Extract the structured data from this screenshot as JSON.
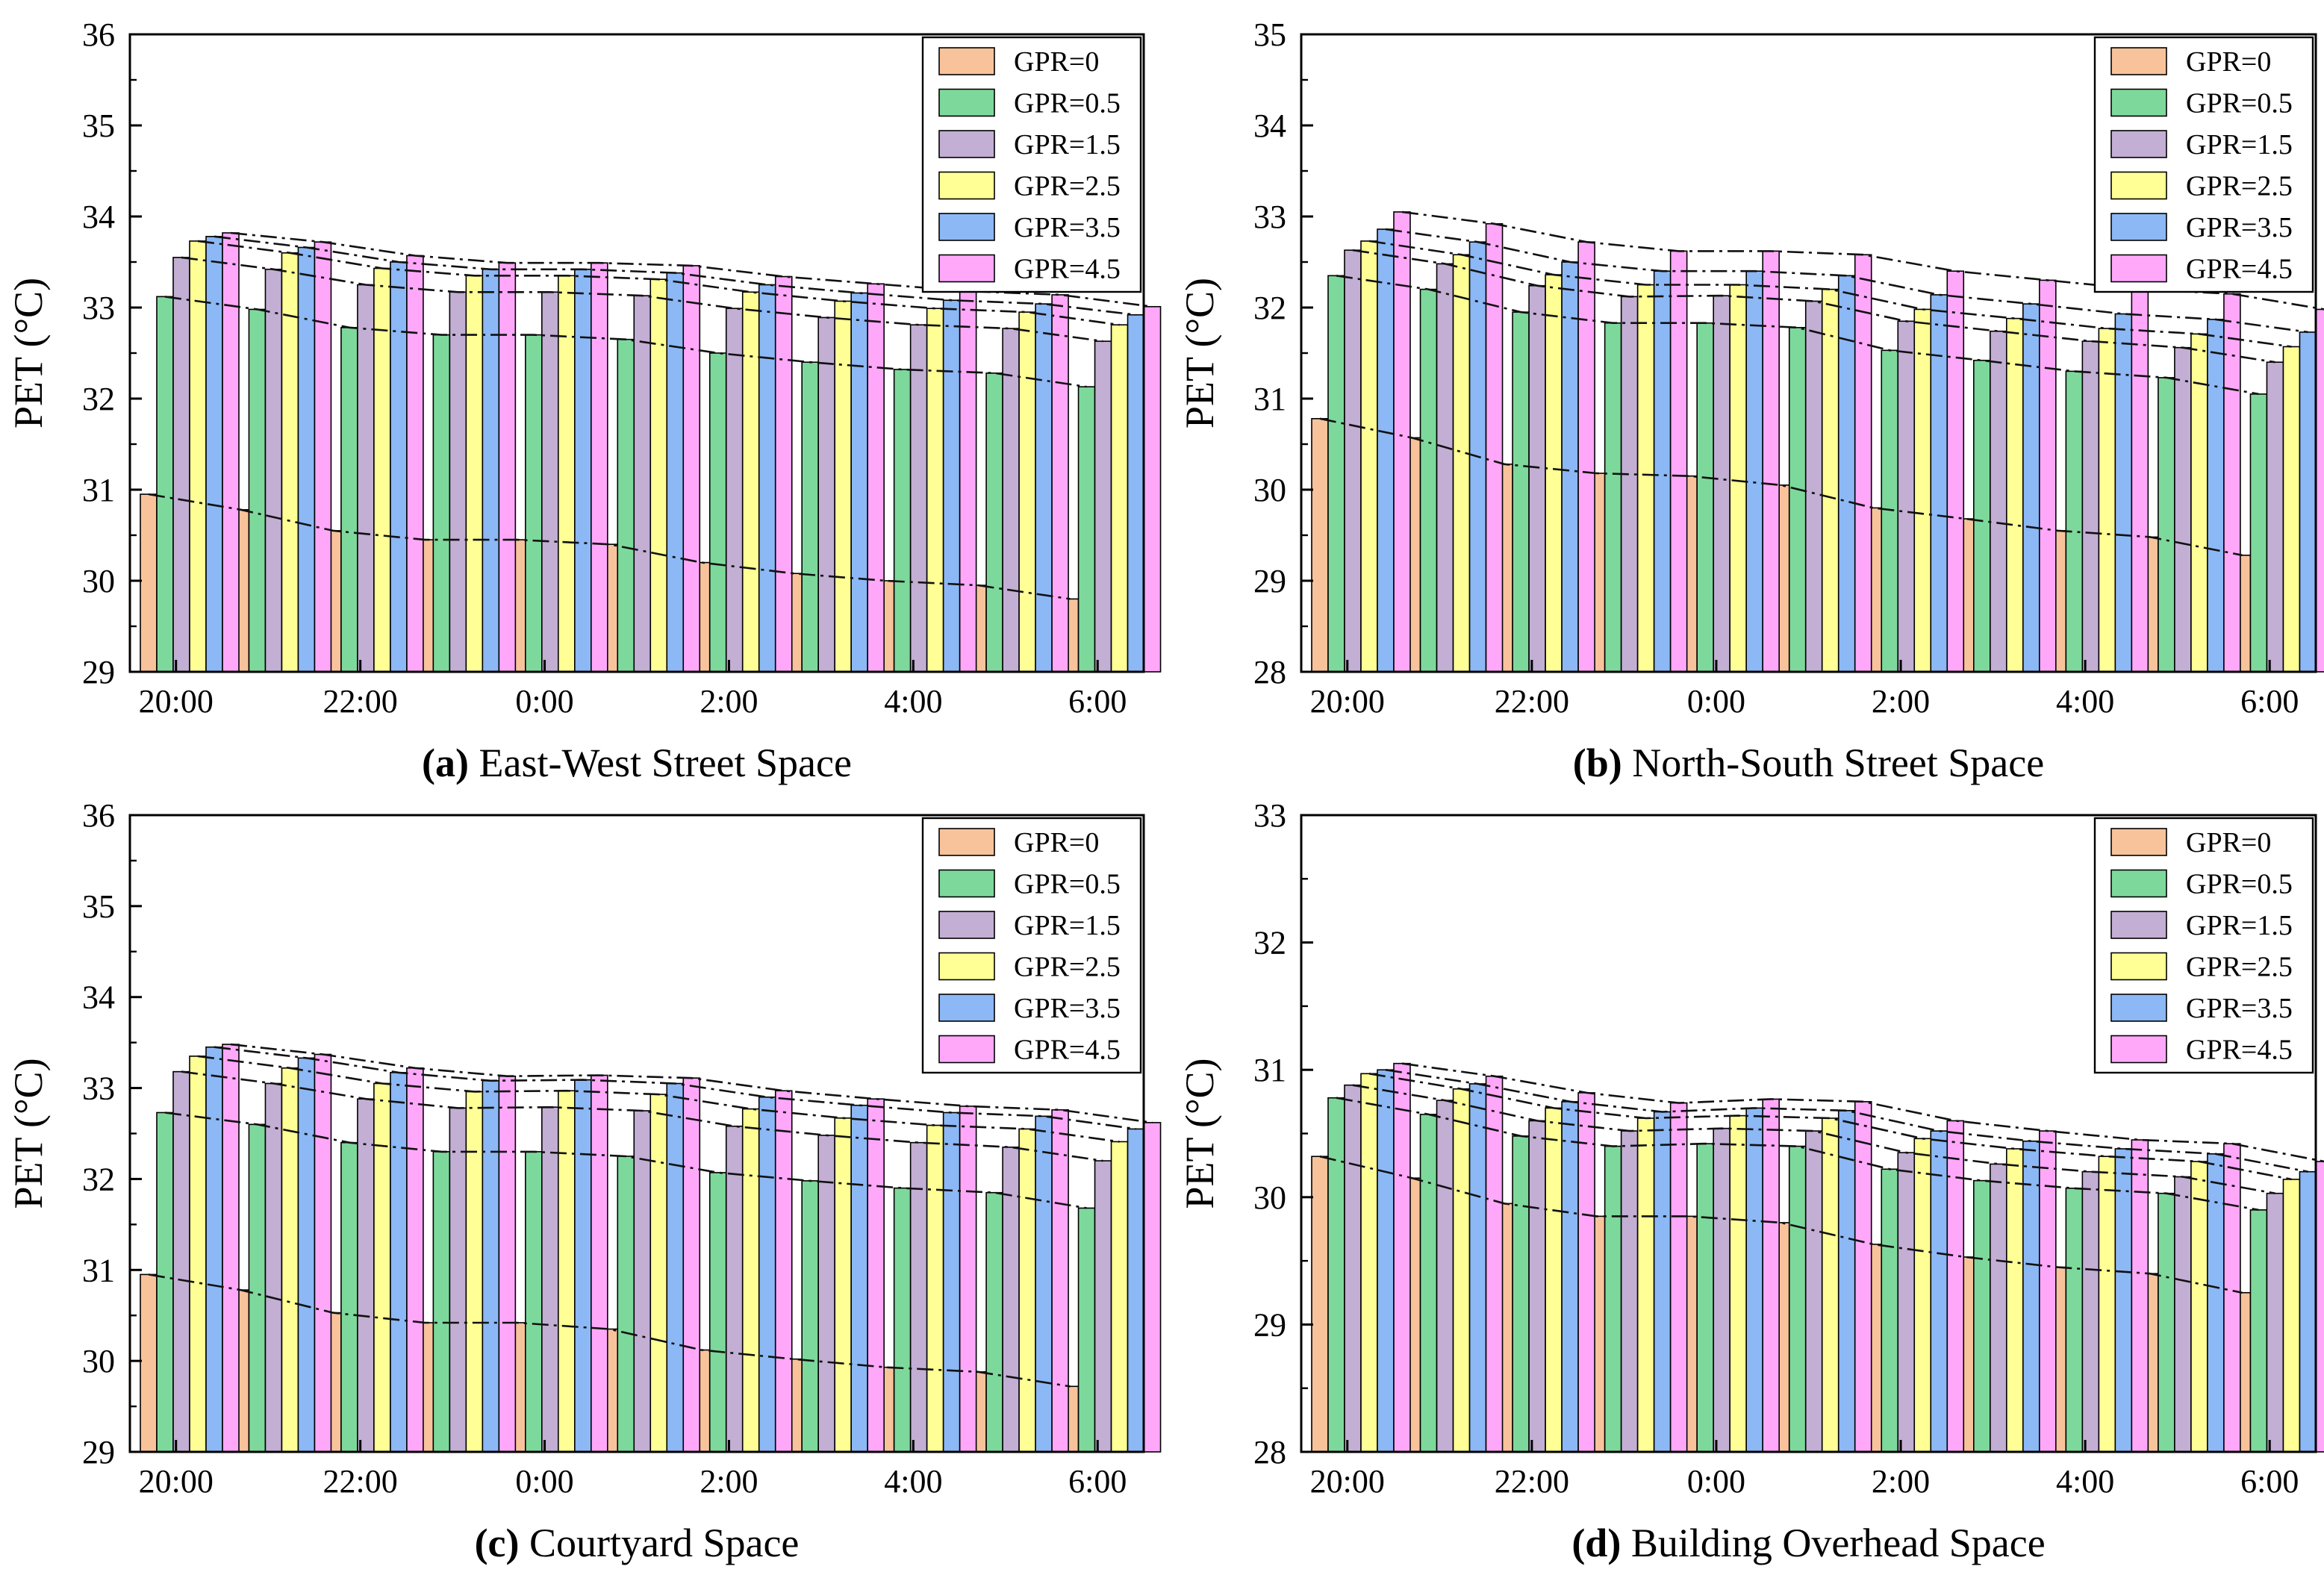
{
  "figure": {
    "legend_labels": [
      "GPR=0",
      "GPR=0.5",
      "GPR=1.5",
      "GPR=2.5",
      "GPR=3.5",
      "GPR=4.5"
    ],
    "series_colors": [
      "#F8C39B",
      "#7DD99B",
      "#C3AED4",
      "#FFFF96",
      "#8CB8F5",
      "#FFA8FA"
    ]
  },
  "chart_data": [
    {
      "type": "bar",
      "panel_letter": "(a)",
      "title": "East-West Street Space",
      "ylabel": "PET (°C)",
      "ylim": [
        29,
        36
      ],
      "yticks": [
        "29",
        "30",
        "31",
        "32",
        "33",
        "34",
        "35",
        "36"
      ],
      "categories": [
        "20:00",
        "21:00",
        "22:00",
        "23:00",
        "0:00",
        "1:00",
        "2:00",
        "3:00",
        "4:00",
        "5:00",
        "6:00"
      ],
      "tick_labels": [
        "20:00",
        "",
        "22:00",
        "",
        "0:00",
        "",
        "2:00",
        "",
        "4:00",
        "",
        "6:00"
      ],
      "series": [
        {
          "name": "GPR=0",
          "values": [
            30.95,
            30.78,
            30.55,
            30.45,
            30.45,
            30.4,
            30.2,
            30.08,
            30.0,
            29.95,
            29.8
          ]
        },
        {
          "name": "GPR=0.5",
          "values": [
            33.12,
            32.98,
            32.78,
            32.7,
            32.7,
            32.65,
            32.5,
            32.4,
            32.32,
            32.28,
            32.13
          ]
        },
        {
          "name": "GPR=1.5",
          "values": [
            33.55,
            33.42,
            33.25,
            33.17,
            33.17,
            33.13,
            32.99,
            32.89,
            32.81,
            32.77,
            32.63
          ]
        },
        {
          "name": "GPR=2.5",
          "values": [
            33.73,
            33.6,
            33.43,
            33.35,
            33.35,
            33.31,
            33.17,
            33.07,
            32.99,
            32.95,
            32.81
          ]
        },
        {
          "name": "GPR=3.5",
          "values": [
            33.78,
            33.66,
            33.5,
            33.42,
            33.42,
            33.38,
            33.25,
            33.16,
            33.08,
            33.04,
            32.92
          ]
        },
        {
          "name": "GPR=4.5",
          "values": [
            33.82,
            33.72,
            33.57,
            33.49,
            33.49,
            33.46,
            33.34,
            33.26,
            33.18,
            33.14,
            33.01
          ]
        }
      ]
    },
    {
      "type": "bar",
      "panel_letter": "(b)",
      "title": "North-South Street Space",
      "ylabel": "PET (°C)",
      "ylim": [
        28,
        35
      ],
      "yticks": [
        "28",
        "29",
        "30",
        "31",
        "32",
        "33",
        "34",
        "35"
      ],
      "categories": [
        "20:00",
        "21:00",
        "22:00",
        "23:00",
        "0:00",
        "1:00",
        "2:00",
        "3:00",
        "4:00",
        "5:00",
        "6:00"
      ],
      "tick_labels": [
        "20:00",
        "",
        "22:00",
        "",
        "0:00",
        "",
        "2:00",
        "",
        "4:00",
        "",
        "6:00"
      ],
      "series": [
        {
          "name": "GPR=0",
          "values": [
            30.78,
            30.57,
            30.28,
            30.18,
            30.15,
            30.05,
            29.8,
            29.68,
            29.55,
            29.48,
            29.28
          ]
        },
        {
          "name": "GPR=0.5",
          "values": [
            32.35,
            32.2,
            31.95,
            31.83,
            31.83,
            31.78,
            31.53,
            31.42,
            31.3,
            31.23,
            31.05
          ]
        },
        {
          "name": "GPR=1.5",
          "values": [
            32.63,
            32.48,
            32.24,
            32.12,
            32.13,
            32.07,
            31.85,
            31.74,
            31.63,
            31.56,
            31.4
          ]
        },
        {
          "name": "GPR=2.5",
          "values": [
            32.73,
            32.58,
            32.36,
            32.25,
            32.25,
            32.2,
            31.98,
            31.88,
            31.77,
            31.71,
            31.57
          ]
        },
        {
          "name": "GPR=3.5",
          "values": [
            32.86,
            32.72,
            32.5,
            32.4,
            32.4,
            32.35,
            32.14,
            32.04,
            31.93,
            31.87,
            31.73
          ]
        },
        {
          "name": "GPR=4.5",
          "values": [
            33.05,
            32.92,
            32.72,
            32.62,
            32.62,
            32.58,
            32.4,
            32.3,
            32.2,
            32.15,
            31.98
          ]
        }
      ]
    },
    {
      "type": "bar",
      "panel_letter": "(c)",
      "title": "Courtyard Space",
      "ylabel": "PET (°C)",
      "ylim": [
        29,
        36
      ],
      "yticks": [
        "29",
        "30",
        "31",
        "32",
        "33",
        "34",
        "35",
        "36"
      ],
      "categories": [
        "20:00",
        "21:00",
        "22:00",
        "23:00",
        "0:00",
        "1:00",
        "2:00",
        "3:00",
        "4:00",
        "5:00",
        "6:00"
      ],
      "tick_labels": [
        "20:00",
        "",
        "22:00",
        "",
        "0:00",
        "",
        "2:00",
        "",
        "4:00",
        "",
        "6:00"
      ],
      "series": [
        {
          "name": "GPR=0",
          "values": [
            30.95,
            30.78,
            30.53,
            30.42,
            30.42,
            30.35,
            30.12,
            30.02,
            29.93,
            29.88,
            29.72
          ]
        },
        {
          "name": "GPR=0.5",
          "values": [
            32.73,
            32.6,
            32.4,
            32.3,
            32.3,
            32.25,
            32.07,
            31.98,
            31.9,
            31.85,
            31.68
          ]
        },
        {
          "name": "GPR=1.5",
          "values": [
            33.18,
            33.05,
            32.88,
            32.78,
            32.79,
            32.75,
            32.58,
            32.48,
            32.4,
            32.35,
            32.2
          ]
        },
        {
          "name": "GPR=2.5",
          "values": [
            33.35,
            33.22,
            33.05,
            32.96,
            32.97,
            32.93,
            32.77,
            32.67,
            32.59,
            32.55,
            32.41
          ]
        },
        {
          "name": "GPR=3.5",
          "values": [
            33.45,
            33.33,
            33.17,
            33.08,
            33.09,
            33.05,
            32.9,
            32.81,
            32.73,
            32.69,
            32.55
          ]
        },
        {
          "name": "GPR=4.5",
          "values": [
            33.48,
            33.37,
            33.22,
            33.13,
            33.14,
            33.11,
            32.97,
            32.88,
            32.8,
            32.76,
            32.62
          ]
        }
      ]
    },
    {
      "type": "bar",
      "panel_letter": "(d)",
      "title": "Building Overhead Space",
      "ylabel": "PET (°C)",
      "ylim": [
        28,
        33
      ],
      "yticks": [
        "28",
        "29",
        "30",
        "31",
        "32",
        "33"
      ],
      "categories": [
        "20:00",
        "21:00",
        "22:00",
        "23:00",
        "0:00",
        "1:00",
        "2:00",
        "3:00",
        "4:00",
        "5:00",
        "6:00"
      ],
      "tick_labels": [
        "20:00",
        "",
        "22:00",
        "",
        "0:00",
        "",
        "2:00",
        "",
        "4:00",
        "",
        "6:00"
      ],
      "series": [
        {
          "name": "GPR=0",
          "values": [
            30.32,
            30.15,
            29.95,
            29.85,
            29.85,
            29.8,
            29.63,
            29.53,
            29.45,
            29.4,
            29.25
          ]
        },
        {
          "name": "GPR=0.5",
          "values": [
            30.78,
            30.65,
            30.48,
            30.4,
            30.42,
            30.4,
            30.22,
            30.13,
            30.07,
            30.03,
            29.9
          ]
        },
        {
          "name": "GPR=1.5",
          "values": [
            30.88,
            30.76,
            30.6,
            30.52,
            30.54,
            30.52,
            30.35,
            30.26,
            30.2,
            30.16,
            30.03
          ]
        },
        {
          "name": "GPR=2.5",
          "values": [
            30.97,
            30.85,
            30.7,
            30.62,
            30.64,
            30.62,
            30.46,
            30.38,
            30.32,
            30.28,
            30.14
          ]
        },
        {
          "name": "GPR=3.5",
          "values": [
            31.0,
            30.89,
            30.75,
            30.67,
            30.7,
            30.68,
            30.52,
            30.44,
            30.38,
            30.34,
            30.2
          ]
        },
        {
          "name": "GPR=4.5",
          "values": [
            31.05,
            30.95,
            30.82,
            30.74,
            30.77,
            30.75,
            30.6,
            30.52,
            30.45,
            30.42,
            30.28
          ]
        }
      ]
    }
  ]
}
